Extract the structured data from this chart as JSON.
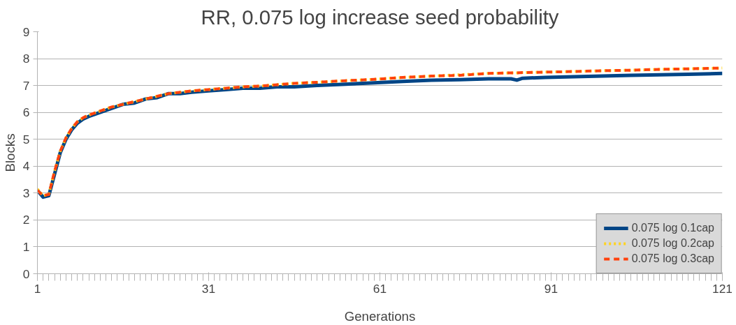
{
  "chart_data": {
    "type": "line",
    "title": "RR, 0.075 log increase seed probability",
    "xlabel": "Generations",
    "ylabel": "Blocks",
    "x": [
      1,
      2,
      3,
      4,
      5,
      6,
      7,
      8,
      9,
      10,
      12,
      14,
      16,
      18,
      20,
      22,
      24,
      26,
      28,
      31,
      34,
      37,
      40,
      43,
      46,
      50,
      55,
      60,
      65,
      70,
      75,
      80,
      84,
      85,
      86,
      90,
      95,
      100,
      105,
      110,
      115,
      121
    ],
    "series": [
      {
        "name": "0.075 log 0.1cap",
        "color": "#004586",
        "line_style": "solid",
        "values": [
          3.1,
          2.85,
          2.9,
          3.7,
          4.5,
          5.0,
          5.35,
          5.6,
          5.75,
          5.85,
          6.0,
          6.15,
          6.3,
          6.35,
          6.5,
          6.55,
          6.7,
          6.7,
          6.75,
          6.8,
          6.85,
          6.9,
          6.9,
          6.95,
          6.95,
          7.0,
          7.05,
          7.1,
          7.15,
          7.2,
          7.22,
          7.25,
          7.25,
          7.2,
          7.27,
          7.3,
          7.33,
          7.35,
          7.38,
          7.4,
          7.42,
          7.45
        ]
      },
      {
        "name": "0.075 log 0.2cap",
        "color": "#ffd320",
        "line_style": "dotted",
        "values": [
          3.15,
          2.9,
          2.95,
          3.8,
          4.55,
          5.05,
          5.4,
          5.65,
          5.8,
          5.9,
          6.05,
          6.2,
          6.3,
          6.4,
          6.5,
          6.6,
          6.7,
          6.75,
          6.8,
          6.85,
          6.9,
          6.95,
          6.98,
          7.03,
          7.08,
          7.12,
          7.18,
          7.23,
          7.3,
          7.35,
          7.4,
          7.45,
          7.47,
          7.47,
          7.48,
          7.5,
          7.52,
          7.55,
          7.57,
          7.6,
          7.62,
          7.65
        ]
      },
      {
        "name": "0.075 log 0.3cap",
        "color": "#ff420e",
        "line_style": "dashed",
        "values": [
          3.1,
          2.9,
          2.95,
          3.8,
          4.55,
          5.05,
          5.4,
          5.65,
          5.8,
          5.9,
          6.05,
          6.2,
          6.3,
          6.4,
          6.5,
          6.6,
          6.7,
          6.75,
          6.8,
          6.85,
          6.9,
          6.95,
          6.98,
          7.03,
          7.08,
          7.12,
          7.18,
          7.23,
          7.3,
          7.35,
          7.38,
          7.45,
          7.47,
          7.47,
          7.48,
          7.5,
          7.52,
          7.55,
          7.57,
          7.6,
          7.62,
          7.65
        ]
      }
    ],
    "xlim": [
      1,
      121
    ],
    "xticks": [
      1,
      31,
      61,
      91,
      121
    ],
    "ylim": [
      0,
      9
    ],
    "yticks": [
      0,
      1,
      2,
      3,
      4,
      5,
      6,
      7,
      8,
      9
    ],
    "grid": "y",
    "legend": "bottom right"
  }
}
